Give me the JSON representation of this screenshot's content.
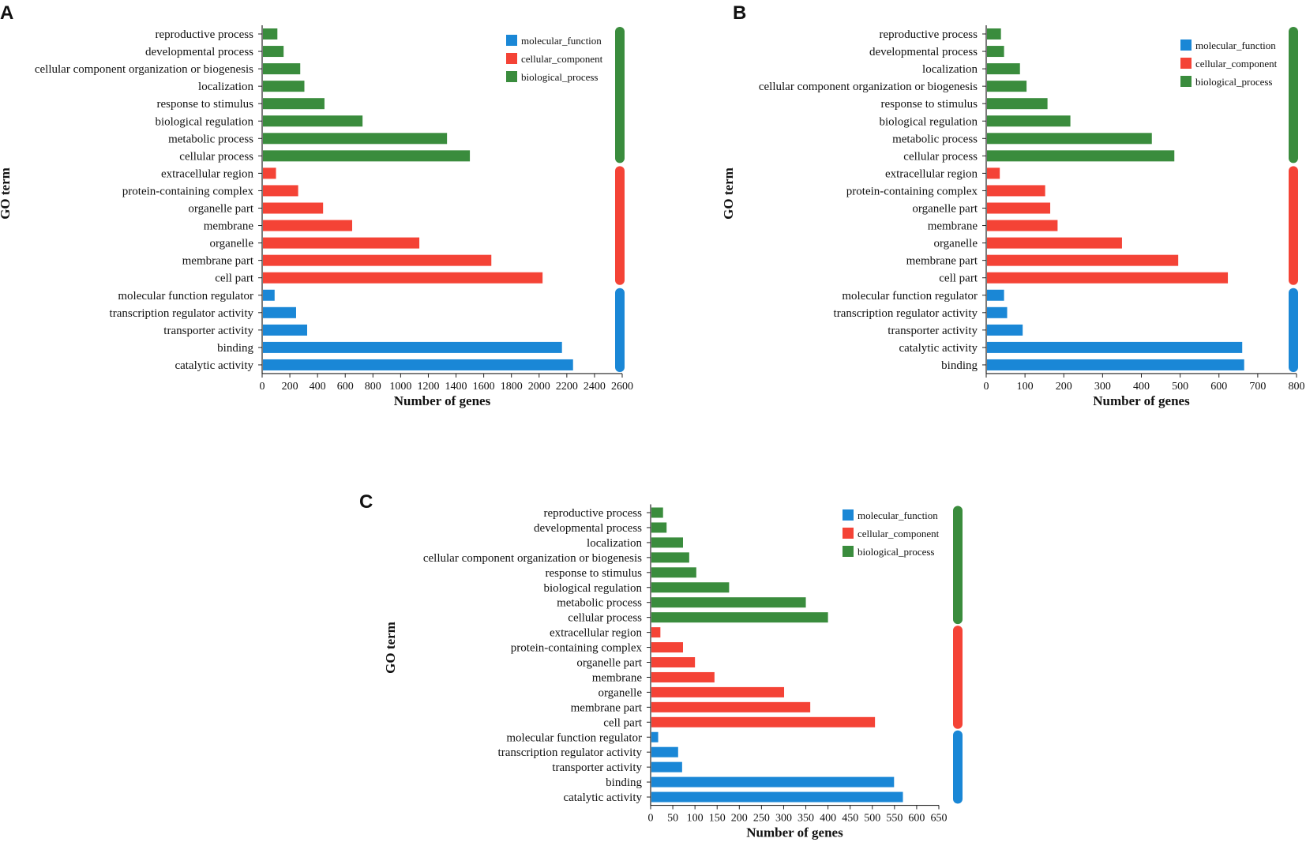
{
  "colors": {
    "molecular_function": "#1a87d6",
    "cellular_component": "#f44336",
    "biological_process": "#3a8c3d"
  },
  "legend": [
    "molecular_function",
    "cellular_component",
    "biological_process"
  ],
  "chart_data": [
    {
      "type": "bar",
      "panel": "A",
      "xlabel": "Number of genes",
      "ylabel": "GO term",
      "xlim": [
        0,
        2600
      ],
      "xticks": [
        0,
        200,
        400,
        600,
        800,
        1000,
        1200,
        1400,
        1600,
        1800,
        2000,
        2200,
        2400,
        2600
      ],
      "categories": [
        {
          "term": "reproductive process",
          "value": 110,
          "group": "biological_process"
        },
        {
          "term": "developmental process",
          "value": 155,
          "group": "biological_process"
        },
        {
          "term": "cellular component organization or biogenesis",
          "value": 275,
          "group": "biological_process"
        },
        {
          "term": "localization",
          "value": 305,
          "group": "biological_process"
        },
        {
          "term": "response to stimulus",
          "value": 450,
          "group": "biological_process"
        },
        {
          "term": "biological regulation",
          "value": 725,
          "group": "biological_process"
        },
        {
          "term": "metabolic process",
          "value": 1335,
          "group": "biological_process"
        },
        {
          "term": "cellular process",
          "value": 1500,
          "group": "biological_process"
        },
        {
          "term": "extracellular region",
          "value": 100,
          "group": "cellular_component"
        },
        {
          "term": "protein-containing complex",
          "value": 260,
          "group": "cellular_component"
        },
        {
          "term": "organelle part",
          "value": 440,
          "group": "cellular_component"
        },
        {
          "term": "membrane",
          "value": 650,
          "group": "cellular_component"
        },
        {
          "term": "organelle",
          "value": 1135,
          "group": "cellular_component"
        },
        {
          "term": "membrane part",
          "value": 1655,
          "group": "cellular_component"
        },
        {
          "term": "cell part",
          "value": 2025,
          "group": "cellular_component"
        },
        {
          "term": "molecular function regulator",
          "value": 90,
          "group": "molecular_function"
        },
        {
          "term": "transcription regulator activity",
          "value": 245,
          "group": "molecular_function"
        },
        {
          "term": "transporter activity",
          "value": 325,
          "group": "molecular_function"
        },
        {
          "term": "binding",
          "value": 2165,
          "group": "molecular_function"
        },
        {
          "term": "catalytic activity",
          "value": 2245,
          "group": "molecular_function"
        }
      ]
    },
    {
      "type": "bar",
      "panel": "B",
      "xlabel": "Number of genes",
      "ylabel": "GO term",
      "xlim": [
        0,
        800
      ],
      "xticks": [
        0,
        100,
        200,
        300,
        400,
        500,
        600,
        700,
        800
      ],
      "categories": [
        {
          "term": "reproductive process",
          "value": 38,
          "group": "biological_process"
        },
        {
          "term": "developmental process",
          "value": 46,
          "group": "biological_process"
        },
        {
          "term": "localization",
          "value": 87,
          "group": "biological_process"
        },
        {
          "term": "cellular component organization or biogenesis",
          "value": 104,
          "group": "biological_process"
        },
        {
          "term": "response to stimulus",
          "value": 158,
          "group": "biological_process"
        },
        {
          "term": "biological regulation",
          "value": 217,
          "group": "biological_process"
        },
        {
          "term": "metabolic process",
          "value": 427,
          "group": "biological_process"
        },
        {
          "term": "cellular process",
          "value": 485,
          "group": "biological_process"
        },
        {
          "term": "extracellular region",
          "value": 35,
          "group": "cellular_component"
        },
        {
          "term": "protein-containing complex",
          "value": 152,
          "group": "cellular_component"
        },
        {
          "term": "organelle part",
          "value": 165,
          "group": "cellular_component"
        },
        {
          "term": "membrane",
          "value": 184,
          "group": "cellular_component"
        },
        {
          "term": "organelle",
          "value": 350,
          "group": "cellular_component"
        },
        {
          "term": "membrane part",
          "value": 495,
          "group": "cellular_component"
        },
        {
          "term": "cell part",
          "value": 623,
          "group": "cellular_component"
        },
        {
          "term": "molecular function regulator",
          "value": 46,
          "group": "molecular_function"
        },
        {
          "term": "transcription regulator activity",
          "value": 54,
          "group": "molecular_function"
        },
        {
          "term": "transporter activity",
          "value": 94,
          "group": "molecular_function"
        },
        {
          "term": "catalytic activity",
          "value": 660,
          "group": "molecular_function"
        },
        {
          "term": "binding",
          "value": 665,
          "group": "molecular_function"
        }
      ]
    },
    {
      "type": "bar",
      "panel": "C",
      "xlabel": "Number of genes",
      "ylabel": "GO term",
      "xlim": [
        0,
        650
      ],
      "xticks": [
        0,
        50,
        100,
        150,
        200,
        250,
        300,
        350,
        400,
        450,
        500,
        550,
        600,
        650
      ],
      "categories": [
        {
          "term": "reproductive process",
          "value": 28,
          "group": "biological_process"
        },
        {
          "term": "developmental process",
          "value": 36,
          "group": "biological_process"
        },
        {
          "term": "localization",
          "value": 73,
          "group": "biological_process"
        },
        {
          "term": "cellular component organization or biogenesis",
          "value": 87,
          "group": "biological_process"
        },
        {
          "term": "response to stimulus",
          "value": 103,
          "group": "biological_process"
        },
        {
          "term": "biological regulation",
          "value": 177,
          "group": "biological_process"
        },
        {
          "term": "metabolic process",
          "value": 350,
          "group": "biological_process"
        },
        {
          "term": "cellular process",
          "value": 400,
          "group": "biological_process"
        },
        {
          "term": "extracellular region",
          "value": 22,
          "group": "cellular_component"
        },
        {
          "term": "protein-containing complex",
          "value": 73,
          "group": "cellular_component"
        },
        {
          "term": "organelle part",
          "value": 100,
          "group": "cellular_component"
        },
        {
          "term": "membrane",
          "value": 144,
          "group": "cellular_component"
        },
        {
          "term": "organelle",
          "value": 301,
          "group": "cellular_component"
        },
        {
          "term": "membrane part",
          "value": 360,
          "group": "cellular_component"
        },
        {
          "term": "cell part",
          "value": 506,
          "group": "cellular_component"
        },
        {
          "term": "molecular function regulator",
          "value": 17,
          "group": "molecular_function"
        },
        {
          "term": "transcription regulator activity",
          "value": 62,
          "group": "molecular_function"
        },
        {
          "term": "transporter activity",
          "value": 71,
          "group": "molecular_function"
        },
        {
          "term": "binding",
          "value": 549,
          "group": "molecular_function"
        },
        {
          "term": "catalytic activity",
          "value": 569,
          "group": "molecular_function"
        }
      ]
    }
  ]
}
